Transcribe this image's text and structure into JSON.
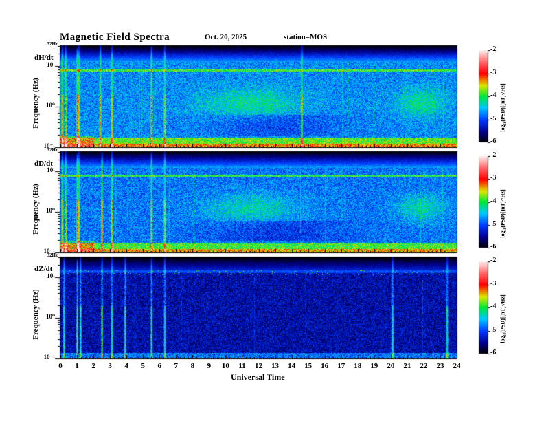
{
  "header": {
    "title": "Magnetic  Field  Spectra",
    "date": "Oct. 20, 2025",
    "station": "station=MOS"
  },
  "chart_data": {
    "type": "heatmap",
    "title": "Magnetic Field Spectra",
    "xlabel": "Universal Time",
    "ylabel": "Frequency (Hz)",
    "xlim": [
      0,
      24
    ],
    "x_ticks": [
      "0",
      "1",
      "2",
      "3",
      "4",
      "5",
      "6",
      "7",
      "8",
      "9",
      "10",
      "11",
      "12",
      "13",
      "14",
      "15",
      "16",
      "17",
      "18",
      "19",
      "20",
      "21",
      "22",
      "23",
      "24"
    ],
    "y_scale": "log",
    "ylim_hz": [
      0.1,
      32
    ],
    "y_ticks": {
      "top": "32Hz",
      "t10": "10¹",
      "t1": "10⁰",
      "t01": "10⁻¹"
    },
    "colorbar": {
      "range": [
        -6,
        -2
      ],
      "ticks": [
        "-2",
        "-3",
        "-4",
        "-5",
        "-6"
      ],
      "label": "log₁₀(PSD)[(nT)²/Hz]"
    },
    "panels": [
      {
        "name": "dH/dt",
        "level": -4.7,
        "band_hz": 8,
        "events_ut": [
          0.1,
          0.3,
          1.0,
          1.1,
          2.4,
          3.1,
          5.5,
          6.3,
          14.6
        ]
      },
      {
        "name": "dD/dt",
        "level": -4.8,
        "band_hz": 8,
        "events_ut": [
          0.1,
          0.3,
          1.0,
          1.1,
          2.5,
          3.1,
          5.5,
          6.3
        ]
      },
      {
        "name": "dZ/dt",
        "level": -5.4,
        "band_hz": 14,
        "events_ut": [
          0.2,
          1.0,
          1.2,
          2.5,
          3.1,
          3.9,
          5.5,
          6.3,
          20.1,
          23.4
        ]
      }
    ]
  }
}
